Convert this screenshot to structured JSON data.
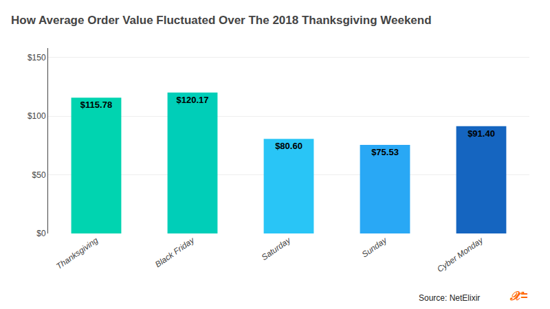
{
  "chart_data": {
    "type": "bar",
    "title": "How Average Order Value Fluctuated Over The 2018 Thanksgiving Weekend",
    "categories": [
      "Thanksgiving",
      "Black Friday",
      "Saturday",
      "Sunday",
      "Cyber Monday"
    ],
    "values": [
      115.78,
      120.17,
      80.6,
      75.53,
      91.4
    ],
    "value_labels": [
      "$115.78",
      "$120.17",
      "$80.60",
      "$75.53",
      "$91.40"
    ],
    "data_labels": true,
    "colors": [
      "#00D4B0",
      "#00CEB8",
      "#29C5F6",
      "#29A8F5",
      "#1565C0"
    ],
    "ylim": [
      0,
      158
    ],
    "yticks": [
      {
        "value": 0,
        "label": "$0"
      },
      {
        "value": 50,
        "label": "$50"
      },
      {
        "value": 100,
        "label": "$100"
      },
      {
        "value": 150,
        "label": "$150"
      }
    ],
    "grid": true,
    "annotations": [
      "Source: NetElixir",
      "𝒳="
    ]
  }
}
